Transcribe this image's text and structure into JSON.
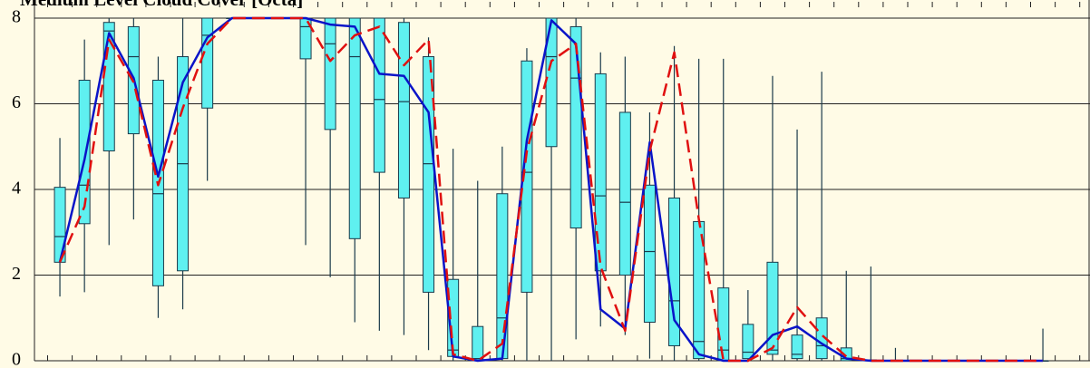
{
  "chart_data": {
    "type": "box",
    "title": "Medium Level Cloud Cover [Octa]",
    "categories": [
      null,
      null,
      null,
      null,
      null,
      null,
      null,
      null,
      null,
      null,
      null,
      null,
      null,
      null,
      null,
      null,
      null,
      null,
      null,
      null,
      null,
      null,
      null,
      null,
      null,
      null,
      null,
      null,
      null,
      null,
      null,
      null,
      null,
      null,
      null,
      null,
      null,
      null,
      null,
      null,
      null
    ],
    "min": [
      1.5,
      1.6,
      2.7,
      3.3,
      1.0,
      1.2,
      4.2,
      8,
      8,
      8,
      2.7,
      1.95,
      0.9,
      0.7,
      0.6,
      0.25,
      0,
      0,
      0,
      0,
      0,
      0.5,
      0.8,
      0.6,
      0.05,
      0,
      0,
      0,
      0,
      0,
      0,
      0,
      0,
      0,
      0,
      0,
      0,
      0,
      0,
      0,
      0
    ],
    "q1": [
      2.3,
      3.2,
      4.9,
      5.3,
      1.75,
      2.1,
      5.9,
      8,
      8,
      8,
      7.05,
      5.4,
      2.85,
      4.4,
      3.8,
      1.6,
      0.1,
      0,
      0.05,
      1.6,
      5.0,
      3.1,
      2.1,
      2.0,
      0.9,
      0.35,
      0.05,
      0,
      0.05,
      0.15,
      0.05,
      0.05,
      0,
      0,
      0,
      0,
      0,
      0,
      0,
      0,
      0
    ],
    "median": [
      2.9,
      4.1,
      7.7,
      7.1,
      3.9,
      4.6,
      7.6,
      8,
      8,
      8,
      7.8,
      7.4,
      7.1,
      6.1,
      6.05,
      4.6,
      0.25,
      0.05,
      1.0,
      4.4,
      7.1,
      6.6,
      3.85,
      3.7,
      2.55,
      1.4,
      0.45,
      0.25,
      0.2,
      0.25,
      0.15,
      0.35,
      0.05,
      0,
      0,
      0,
      0,
      0,
      0,
      0,
      0
    ],
    "q3": [
      4.05,
      6.55,
      7.9,
      7.8,
      6.55,
      7.1,
      8,
      8,
      8,
      8,
      8,
      8,
      8,
      8,
      7.9,
      7.1,
      1.9,
      0.8,
      3.9,
      7.0,
      8,
      7.8,
      6.7,
      5.8,
      4.1,
      3.8,
      3.25,
      1.7,
      0.85,
      2.3,
      0.6,
      1.0,
      0.3,
      0.02,
      0,
      0,
      0,
      0,
      0,
      0,
      0
    ],
    "max": [
      5.2,
      7.5,
      8,
      8,
      7.1,
      8,
      8,
      8,
      8,
      8,
      8,
      8,
      8,
      8,
      8,
      7.55,
      4.95,
      4.2,
      5.0,
      7.3,
      8,
      8,
      7.2,
      7.1,
      5.8,
      7.35,
      7.05,
      7.05,
      1.65,
      6.65,
      5.4,
      6.75,
      2.1,
      2.2,
      0.3,
      0,
      0,
      0,
      0,
      0,
      0.75
    ],
    "box_color": "#5ff0f0",
    "series": [
      {
        "color": "#0a14c8",
        "dashed": false,
        "values": [
          2.3,
          4.7,
          7.65,
          6.6,
          4.3,
          6.5,
          7.55,
          8,
          8,
          8,
          8,
          7.85,
          7.8,
          6.7,
          6.65,
          5.8,
          0.1,
          0,
          0.05,
          5.15,
          7.95,
          7.4,
          1.2,
          0.75,
          5.1,
          0.95,
          0.15,
          0,
          0,
          0.6,
          0.8,
          0.4,
          0.05,
          0,
          0,
          0,
          0,
          0,
          0,
          0,
          0
        ]
      },
      {
        "color": "#e01010",
        "dashed": true,
        "values": [
          2.3,
          3.6,
          7.5,
          6.5,
          4.1,
          5.9,
          7.4,
          8,
          8,
          8,
          8,
          7.0,
          7.6,
          7.8,
          6.9,
          7.5,
          0.15,
          0,
          0.4,
          4.9,
          7.0,
          7.4,
          2.2,
          0.7,
          4.9,
          7.2,
          3.3,
          0,
          0,
          0.3,
          1.25,
          0.6,
          0.1,
          0,
          0,
          0,
          0,
          0,
          0,
          0,
          0
        ]
      }
    ],
    "ylim": [
      0,
      8
    ],
    "yticks": [
      0,
      2,
      4,
      6,
      8
    ],
    "grid": true
  }
}
